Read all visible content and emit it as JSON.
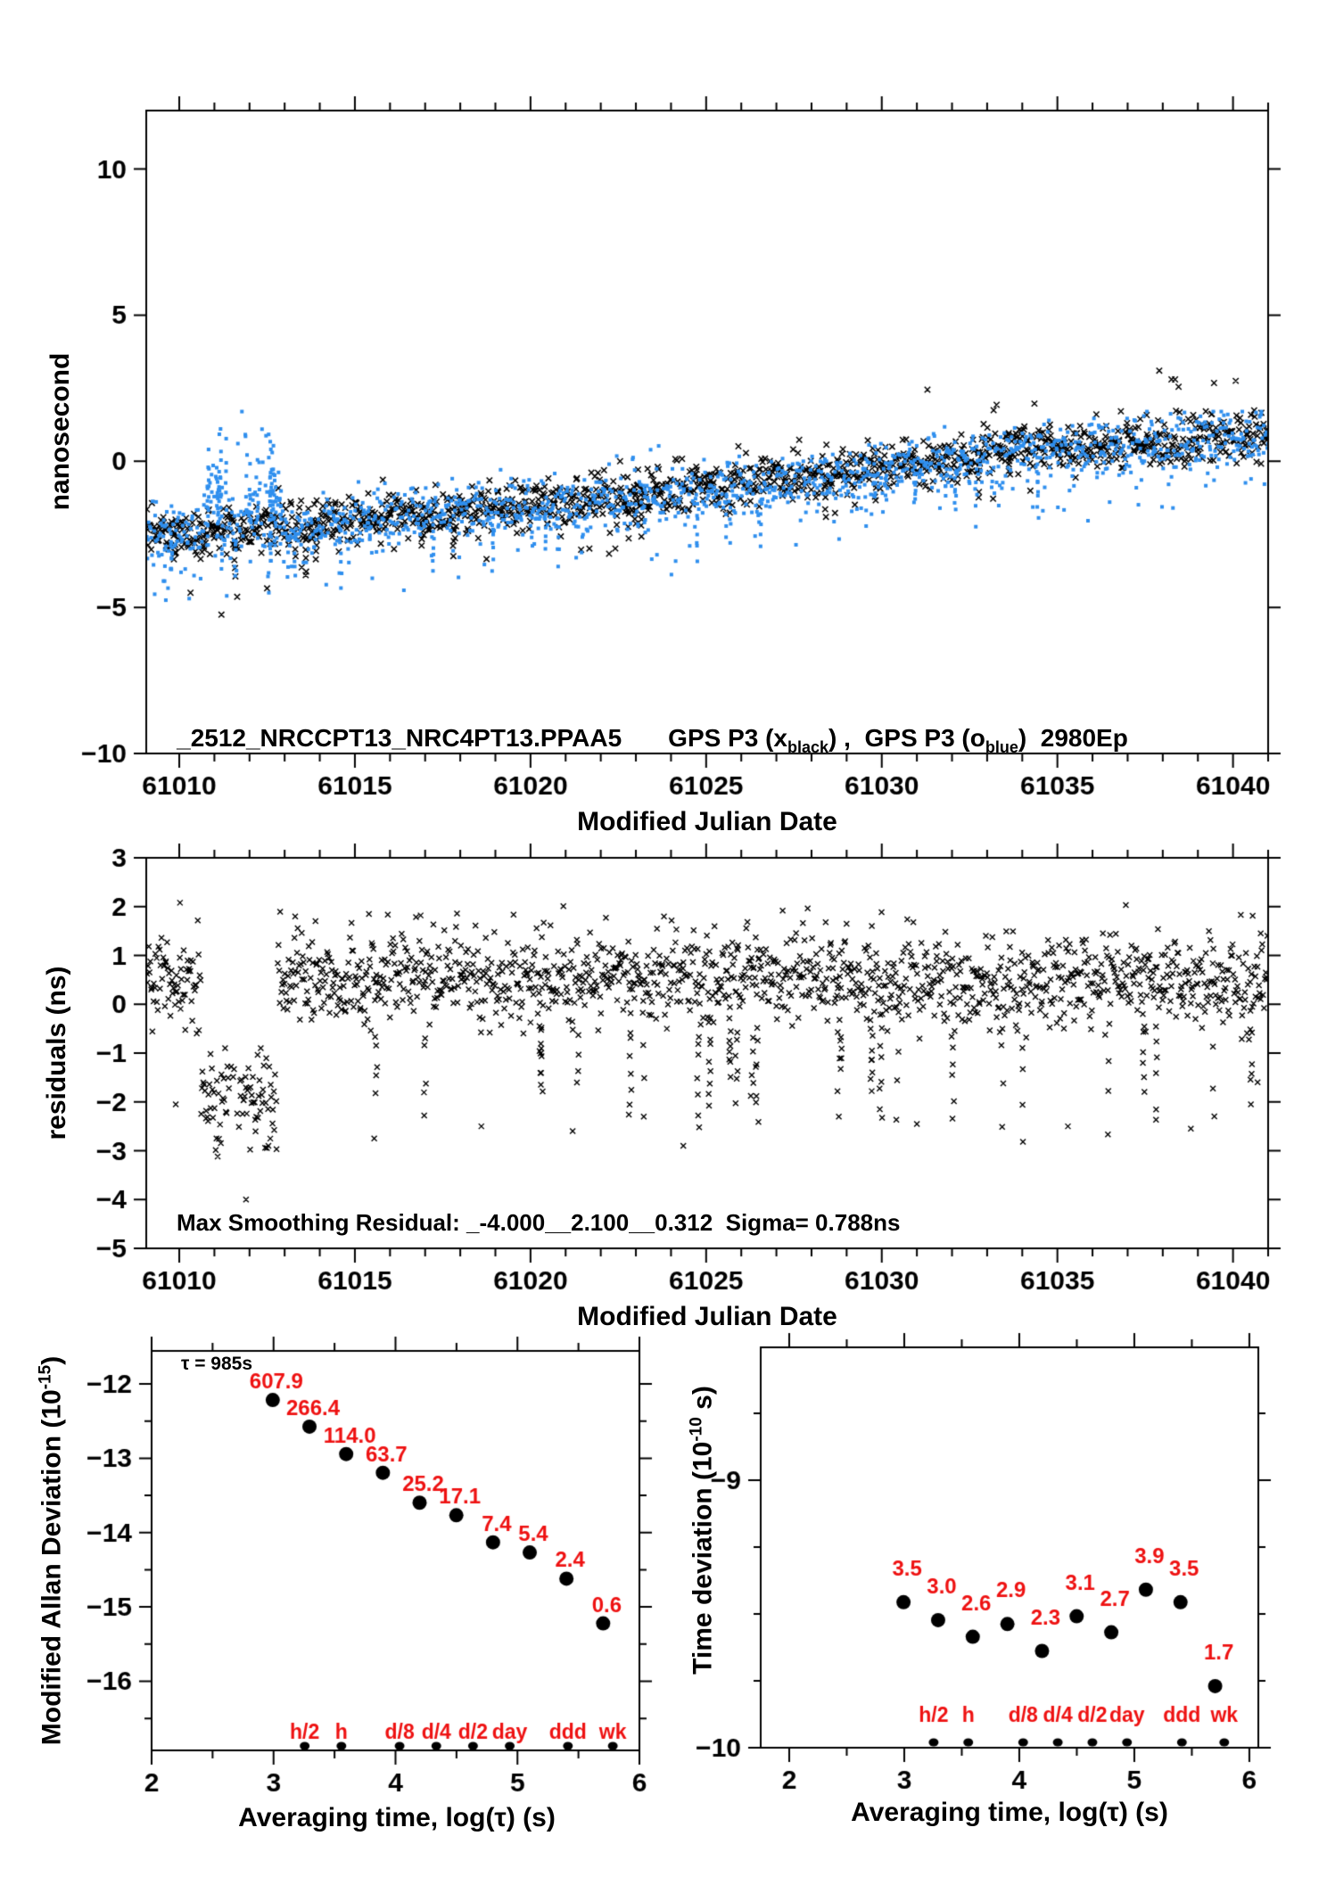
{
  "seed": 20127,
  "colors": {
    "black": "#000000",
    "blue": "#2f8fee",
    "red": "#ee1111",
    "axis": "#000000"
  },
  "chart_data": [
    {
      "type": "scatter",
      "id": "phase",
      "xlabel": "Modified Julian Date",
      "ylabel": "nanosecond",
      "legend": {
        "file": "_2512_NRCCPT13_NRC4PT13.PPAA5",
        "s1pre": "GPS P3 (x",
        "s1sub": "black",
        "s1mid": ") ,  GPS P3 (o",
        "s2sub": "blue",
        "s1post": ")  2980Ep"
      },
      "xlim": [
        61009.06,
        61041.0
      ],
      "ylim": [
        -10,
        12
      ],
      "xticks": [
        61010,
        61015,
        61020,
        61025,
        61030,
        61035,
        61040
      ],
      "xtick_minor_step": 1,
      "yticks": [
        10,
        5,
        0,
        -5,
        -10
      ],
      "epochs_per_series": 1490,
      "trend": [
        [
          61009.06,
          -2.45
        ],
        [
          61010.0,
          -2.4
        ],
        [
          61011.0,
          -2.35
        ],
        [
          61012.0,
          -2.3
        ],
        [
          61013.0,
          -2.3
        ],
        [
          61014.0,
          -2.1
        ],
        [
          61015.0,
          -1.9
        ],
        [
          61016.0,
          -1.8
        ],
        [
          61017.5,
          -1.75
        ],
        [
          61019.0,
          -1.6
        ],
        [
          61020.5,
          -1.45
        ],
        [
          61022.0,
          -1.3
        ],
        [
          61023.5,
          -1.1
        ],
        [
          61025.0,
          -0.9
        ],
        [
          61026.5,
          -0.7
        ],
        [
          61028.0,
          -0.55
        ],
        [
          61029.5,
          -0.35
        ],
        [
          61031.0,
          -0.1
        ],
        [
          61032.5,
          0.1
        ],
        [
          61034.0,
          0.35
        ],
        [
          61035.5,
          0.5
        ],
        [
          61037.0,
          0.6
        ],
        [
          61038.5,
          0.75
        ],
        [
          61040.0,
          0.85
        ],
        [
          61041.0,
          0.9
        ]
      ],
      "black": {
        "sigma": 0.42,
        "tail_prob": 0.03,
        "columns": 14,
        "outliers": [
          [
            61010.32,
            -4.5
          ],
          [
            61011.2,
            -5.25
          ],
          [
            61012.5,
            -4.35
          ],
          [
            61013.6,
            -3.9
          ],
          [
            61037.9,
            3.1
          ],
          [
            61038.35,
            2.8
          ],
          [
            61031.3,
            2.45
          ]
        ]
      },
      "blue": {
        "sigma": 0.5,
        "offset": -0.12,
        "tail_prob": 0.05,
        "columns": 30,
        "bump": [
          61010.7,
          61012.9
        ],
        "bump_gap": [
          61011.42,
          61011.78
        ],
        "bump_columns": 16,
        "outliers": [
          [
            61009.3,
            -4.55
          ],
          [
            61009.55,
            -4.1
          ],
          [
            61010.05,
            -3.8
          ],
          [
            61012.55,
            -4.5
          ],
          [
            61013.2,
            -3.6
          ],
          [
            61021.3,
            -3.3
          ],
          [
            61023.6,
            -3.2
          ]
        ]
      }
    },
    {
      "type": "scatter",
      "id": "residuals",
      "xlabel": "Modified Julian Date",
      "ylabel": "residuals (ns)",
      "annotation": "Max Smoothing Residual: _-4.000__2.100__0.312  Sigma= 0.788ns",
      "xlim": [
        61009.06,
        61041.0
      ],
      "ylim": [
        -5,
        3
      ],
      "xticks": [
        61010,
        61015,
        61020,
        61025,
        61030,
        61035,
        61040
      ],
      "xtick_minor_step": 1,
      "yticks": [
        3,
        2,
        1,
        0,
        -1,
        -2,
        -3,
        -4,
        -5
      ],
      "n": 1500,
      "mean": [
        [
          61009.06,
          0.55
        ],
        [
          61010.6,
          0.5
        ],
        [
          61012.78,
          0.5
        ],
        [
          61014,
          0.55
        ],
        [
          61017,
          0.55
        ],
        [
          61020,
          0.5
        ],
        [
          61023,
          0.6
        ],
        [
          61026,
          0.6
        ],
        [
          61029,
          0.5
        ],
        [
          61032,
          0.35
        ],
        [
          61035,
          0.45
        ],
        [
          61038,
          0.5
        ],
        [
          61041,
          0.35
        ]
      ],
      "sigma": 0.45,
      "dip": {
        "range": [
          61010.62,
          61012.78
        ],
        "gap": [
          61011.42,
          61011.72
        ],
        "mean": -2.05,
        "sigma": 0.5,
        "clip": [
          -3.12,
          -0.9
        ]
      },
      "spikes": 26,
      "outliers": [
        [
          61010.02,
          2.08
        ],
        [
          61011.9,
          -4.0
        ],
        [
          61009.9,
          -2.05
        ],
        [
          61013.3,
          1.8
        ],
        [
          61015.4,
          1.85
        ],
        [
          61024.35,
          -2.9
        ],
        [
          61021.2,
          -2.6
        ],
        [
          61015.55,
          -2.75
        ],
        [
          61031.0,
          -2.45
        ],
        [
          61035.3,
          -2.5
        ],
        [
          61038.8,
          -2.55
        ],
        [
          61018.6,
          -2.5
        ],
        [
          61040.7,
          -1.6
        ]
      ]
    },
    {
      "type": "scatter",
      "id": "madev",
      "xlabel": "Averaging time, log(τ) (s)",
      "ylabel_base": "Modified Allan Deviation (10",
      "ylabel_sup": "-15",
      "ylabel_end": ")",
      "tau_note": "τ = 985s",
      "xlim": [
        2,
        6
      ],
      "ylim": [
        -16.93,
        -11.556
      ],
      "xticks": [
        2,
        3,
        4,
        5,
        6
      ],
      "xtick_minor_step": 0.5,
      "yticks": [
        -12,
        -13,
        -14,
        -15,
        -16
      ],
      "ytick_minor_step": 0.5,
      "log_tau": [
        2.9934,
        3.2945,
        3.5955,
        3.8965,
        4.1975,
        4.4985,
        4.7996,
        5.1006,
        5.4016,
        5.7026
      ],
      "labels": [
        "607.9",
        "266.4",
        "114.0",
        "63.7",
        "25.2",
        "17.1",
        "7.4",
        "5.4",
        "2.4",
        "0.6"
      ],
      "unit_exponent": -15,
      "time_marks": [
        {
          "label": "h/2",
          "log": 3.2553
        },
        {
          "label": "h",
          "log": 3.5563
        },
        {
          "label": "d/8",
          "log": 4.0334
        },
        {
          "label": "d/4",
          "log": 4.3345
        },
        {
          "label": "d/2",
          "log": 4.6355
        },
        {
          "label": "day",
          "log": 4.9365
        },
        {
          "label": "ddd",
          "log": 5.4137
        },
        {
          "label": "wk",
          "log": 5.7817
        }
      ]
    },
    {
      "type": "scatter",
      "id": "tdev",
      "xlabel": "Averaging time, log(τ) (s)",
      "ylabel_base": "Time deviation (10",
      "ylabel_sup": "-10",
      "ylabel_end": " s)",
      "xlim": [
        1.752,
        6.078
      ],
      "ylim": [
        -10,
        -8.503
      ],
      "xticks": [
        2,
        3,
        4,
        5,
        6
      ],
      "xtick_minor_step": 0.5,
      "yticks": [
        -9,
        -10
      ],
      "ytick_minor_step": 0.25,
      "log_tau": [
        2.9934,
        3.2945,
        3.5955,
        3.8965,
        4.1975,
        4.4985,
        4.7996,
        5.1006,
        5.4016,
        5.7026
      ],
      "labels": [
        "3.5",
        "3.0",
        "2.6",
        "2.9",
        "2.3",
        "3.1",
        "2.7",
        "3.9",
        "3.5",
        "1.7"
      ],
      "unit_exponent": -10,
      "time_marks": [
        {
          "label": "h/2",
          "log": 3.2553
        },
        {
          "label": "h",
          "log": 3.5563
        },
        {
          "label": "d/8",
          "log": 4.0334
        },
        {
          "label": "d/4",
          "log": 4.3345
        },
        {
          "label": "d/2",
          "log": 4.6355
        },
        {
          "label": "day",
          "log": 4.9365
        },
        {
          "label": "ddd",
          "log": 5.4137
        },
        {
          "label": "wk",
          "log": 5.7817
        }
      ]
    }
  ]
}
